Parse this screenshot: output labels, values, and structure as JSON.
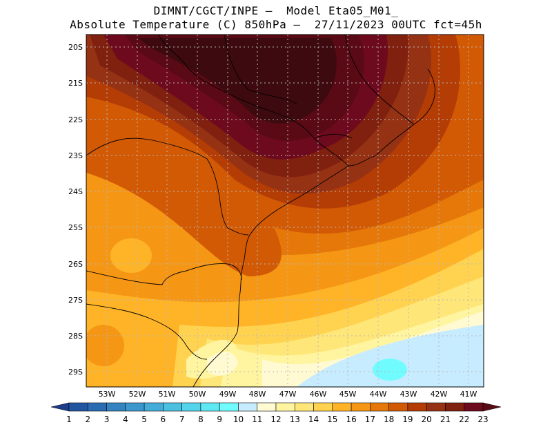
{
  "title_line1": "DIMNT/CGCT/INPE –  Model Eta05_M01_",
  "title_line2": "Absolute Temperature (C) 850hPa –  27/11/2023 00UTC fct=45h",
  "lat_labels": [
    "20S",
    "21S",
    "22S",
    "23S",
    "24S",
    "25S",
    "26S",
    "27S",
    "28S",
    "29S"
  ],
  "lon_labels": [
    "53W",
    "52W",
    "51W",
    "50W",
    "49W",
    "48W",
    "47W",
    "46W",
    "45W",
    "44W",
    "43W",
    "42W",
    "41W"
  ],
  "colorbar": {
    "labels": [
      "1",
      "2",
      "3",
      "4",
      "5",
      "6",
      "7",
      "8",
      "9",
      "10",
      "11",
      "12",
      "13",
      "14",
      "15",
      "16",
      "17",
      "18",
      "19",
      "20",
      "21",
      "22",
      "23"
    ],
    "colors": [
      "#1e3c8c",
      "#2255a0",
      "#2a6cb2",
      "#3483c0",
      "#3c98cc",
      "#44acd8",
      "#4cc0e0",
      "#54d4ea",
      "#5ee8f4",
      "#70fcff",
      "#c8ecff",
      "#fffad2",
      "#fff5a0",
      "#ffe678",
      "#ffd250",
      "#ffb428",
      "#f59614",
      "#e6780a",
      "#d25a05",
      "#b43c05",
      "#963214",
      "#80200f",
      "#6e0a1e",
      "#5a0a14"
    ]
  }
}
